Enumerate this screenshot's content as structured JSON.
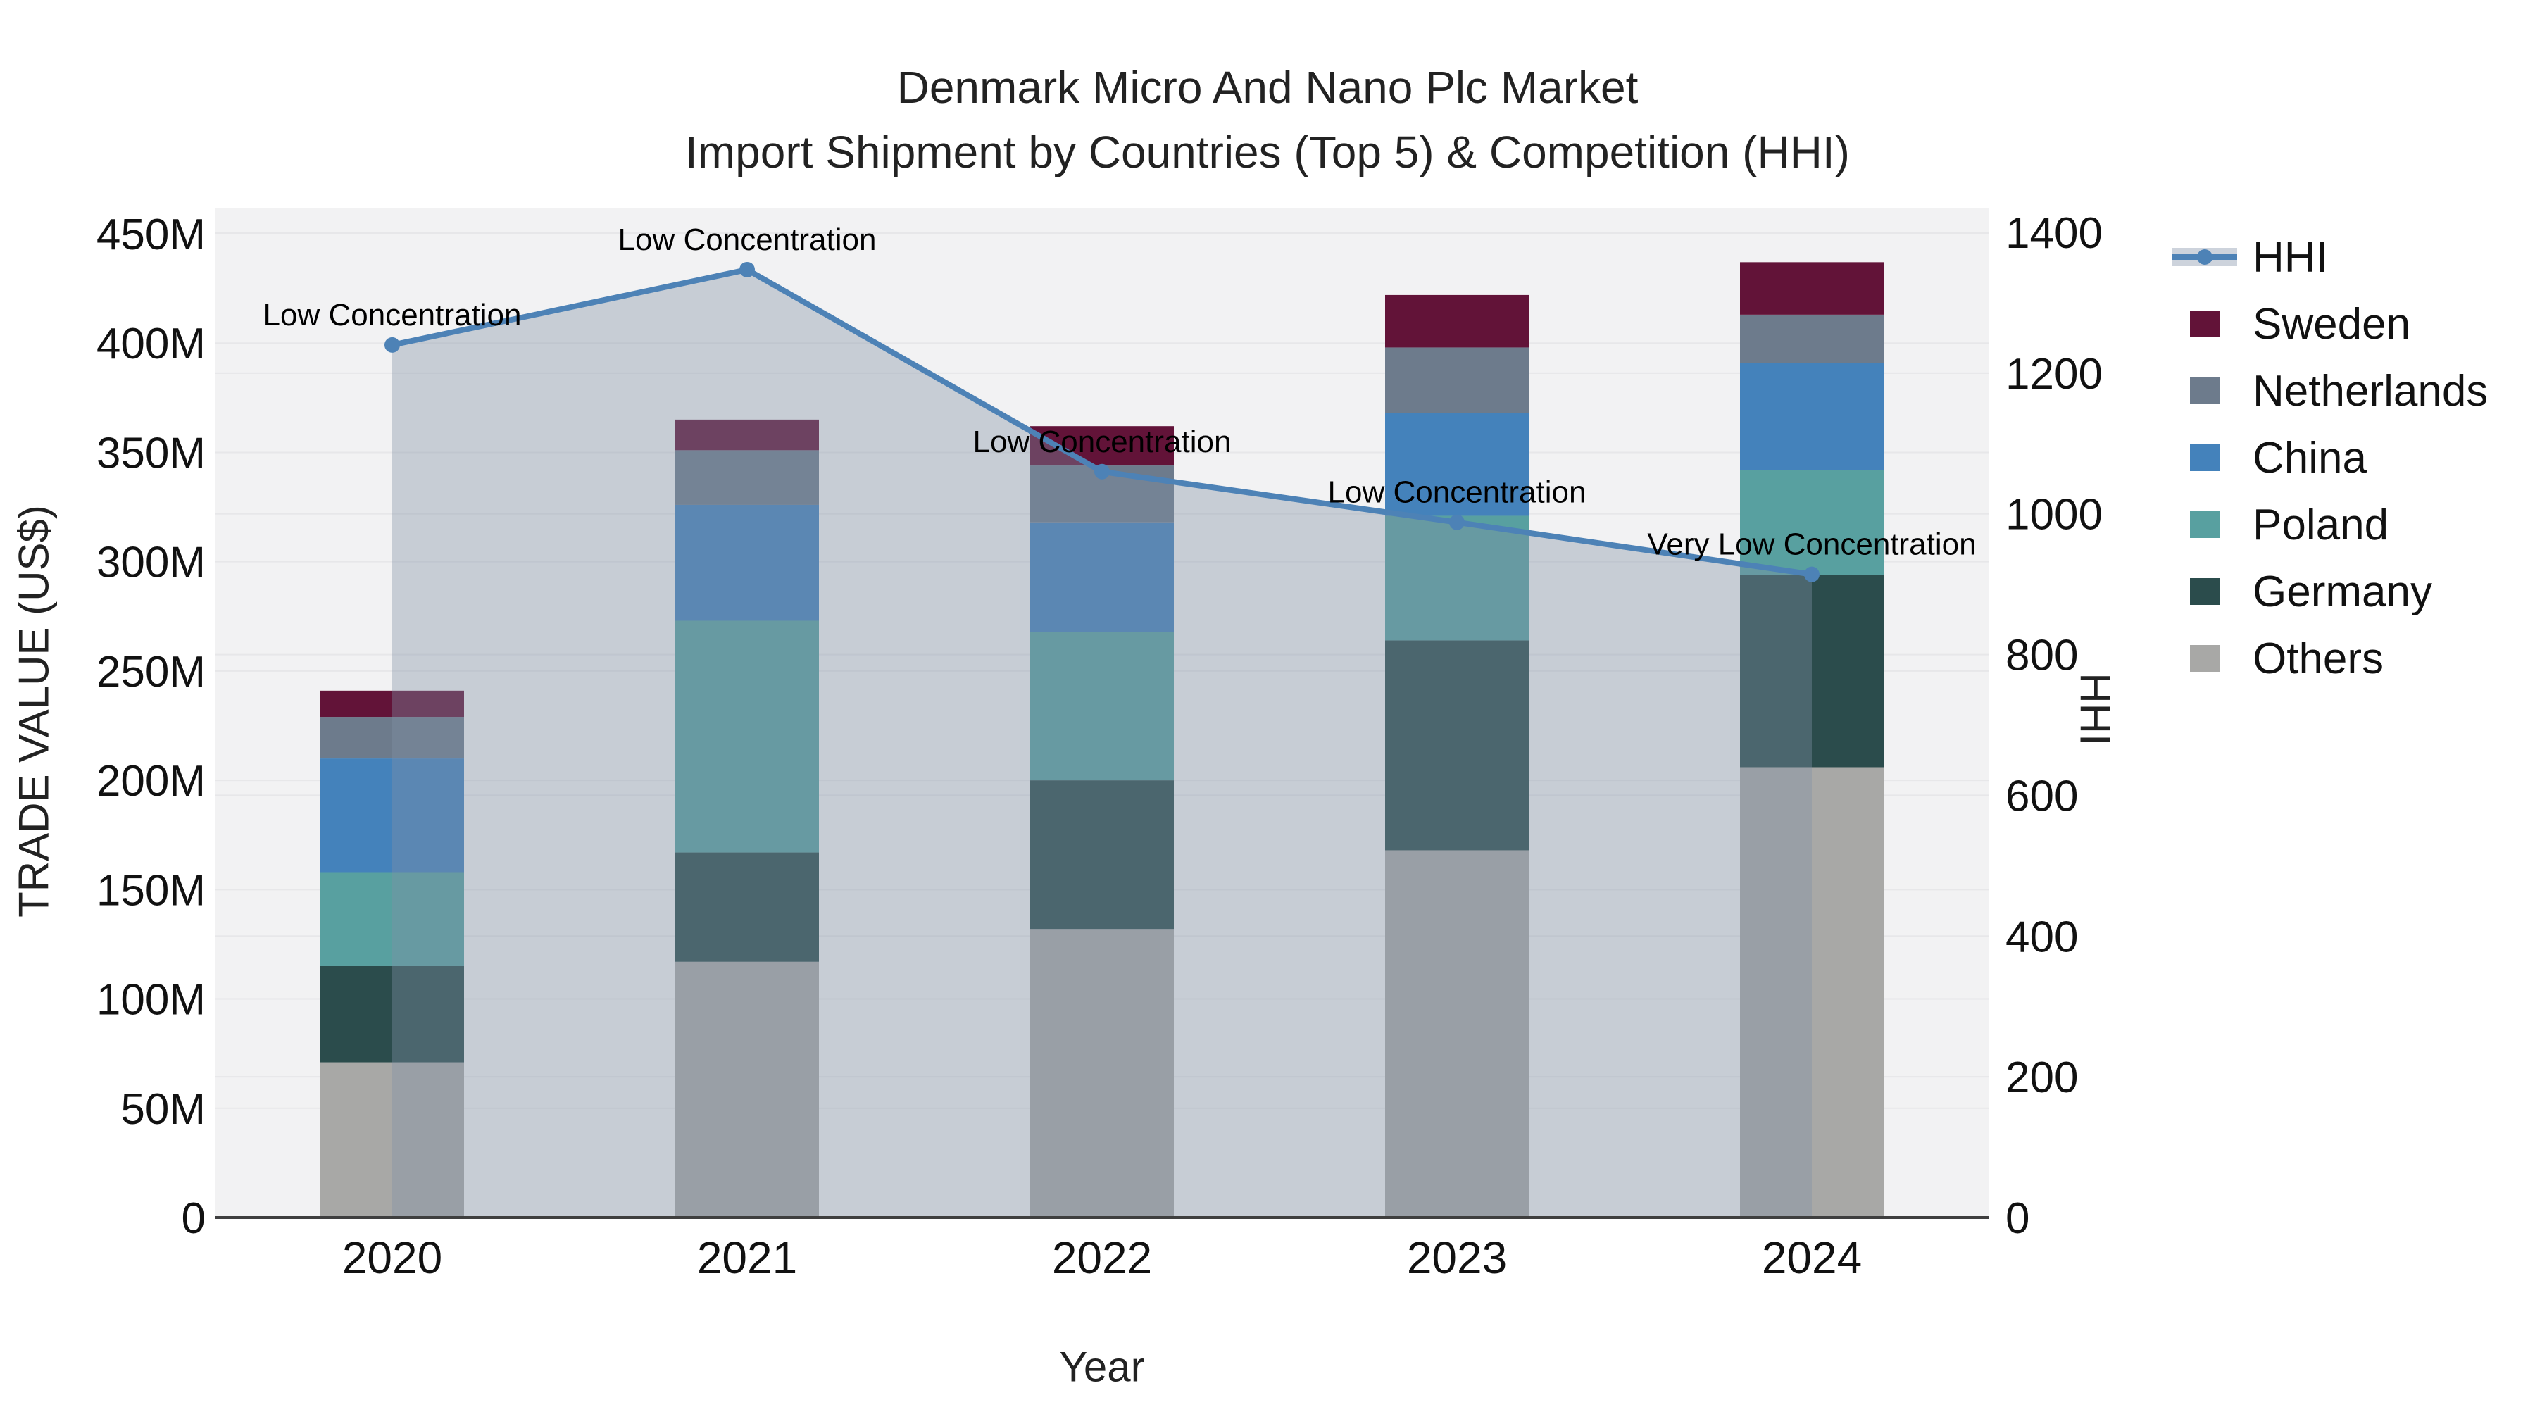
{
  "title": {
    "line1": "Denmark Micro And Nano Plc Market",
    "line2": "Import Shipment by Countries (Top 5) & Competition (HHI)"
  },
  "axes": {
    "y_left": {
      "title": "TRADE VALUE (US$)",
      "tick_labels": [
        "0",
        "50M",
        "100M",
        "150M",
        "200M",
        "250M",
        "300M",
        "350M",
        "400M",
        "450M"
      ],
      "tick_values_millions": [
        0,
        50,
        100,
        150,
        200,
        250,
        300,
        350,
        400,
        450
      ]
    },
    "y_right": {
      "title": "HHI",
      "tick_labels": [
        "0",
        "200",
        "400",
        "600",
        "800",
        "1000",
        "1200",
        "1400"
      ],
      "tick_values": [
        0,
        200,
        400,
        600,
        800,
        1000,
        1200,
        1400
      ]
    },
    "x": {
      "title": "Year",
      "tick_labels": [
        "2020",
        "2021",
        "2022",
        "2023",
        "2024"
      ]
    }
  },
  "legend": [
    {
      "label": "HHI",
      "type": "line",
      "color": "#4d82b6"
    },
    {
      "label": "Sweden",
      "type": "swatch",
      "color": "#621338"
    },
    {
      "label": "Netherlands",
      "type": "swatch",
      "color": "#6d7b8c"
    },
    {
      "label": "China",
      "type": "swatch",
      "color": "#4482bb"
    },
    {
      "label": "Poland",
      "type": "swatch",
      "color": "#58a0a0"
    },
    {
      "label": "Germany",
      "type": "swatch",
      "color": "#2b4c4c"
    },
    {
      "label": "Others",
      "type": "swatch",
      "color": "#a8a8a6"
    }
  ],
  "chart_data": {
    "type": "bar",
    "subtype": "stacked-bars-with-line-overlay",
    "title": "Denmark Micro And Nano Plc Market — Import Shipment by Countries (Top 5) & Competition (HHI)",
    "xlabel": "Year",
    "ylabel_left": "TRADE VALUE (US$)",
    "ylabel_right": "HHI",
    "categories": [
      "2020",
      "2021",
      "2022",
      "2023",
      "2024"
    ],
    "stack_order_bottom_to_top": [
      "Others",
      "Germany",
      "Poland",
      "China",
      "Netherlands",
      "Sweden"
    ],
    "series": [
      {
        "name": "Others",
        "unit": "M US$",
        "values": [
          71,
          117,
          132,
          168,
          206
        ]
      },
      {
        "name": "Germany",
        "unit": "M US$",
        "values": [
          44,
          50,
          68,
          96,
          88
        ]
      },
      {
        "name": "Poland",
        "unit": "M US$",
        "values": [
          43,
          106,
          68,
          57,
          48
        ]
      },
      {
        "name": "China",
        "unit": "M US$",
        "values": [
          52,
          53,
          50,
          47,
          49
        ]
      },
      {
        "name": "Netherlands",
        "unit": "M US$",
        "values": [
          19,
          25,
          26,
          30,
          22
        ]
      },
      {
        "name": "Sweden",
        "unit": "M US$",
        "values": [
          12,
          14,
          18,
          24,
          24
        ]
      }
    ],
    "bar_totals_millions": [
      241,
      365,
      362,
      422,
      437
    ],
    "line_series": {
      "name": "HHI",
      "axis": "right",
      "values": [
        1240,
        1347,
        1060,
        988,
        914
      ],
      "area_fill": true
    },
    "annotations": [
      {
        "x": "2020",
        "text": "Low Concentration"
      },
      {
        "x": "2021",
        "text": "Low Concentration"
      },
      {
        "x": "2022",
        "text": "Low Concentration"
      },
      {
        "x": "2023",
        "text": "Low Concentration"
      },
      {
        "x": "2024",
        "text": "Very Low Concentration"
      }
    ],
    "ylim_left_millions": [
      0,
      462
    ],
    "ylim_right": [
      0,
      1400
    ],
    "grid": true,
    "legend_position": "right"
  },
  "colors": {
    "hhi_line": "#4d82b6",
    "hhi_area_fill": "rgba(130,145,165,0.38)",
    "plot_background": "#f2f2f3",
    "gridline": "#e7e7e9",
    "axis_line": "#3f3f3f",
    "text": "#111111"
  }
}
